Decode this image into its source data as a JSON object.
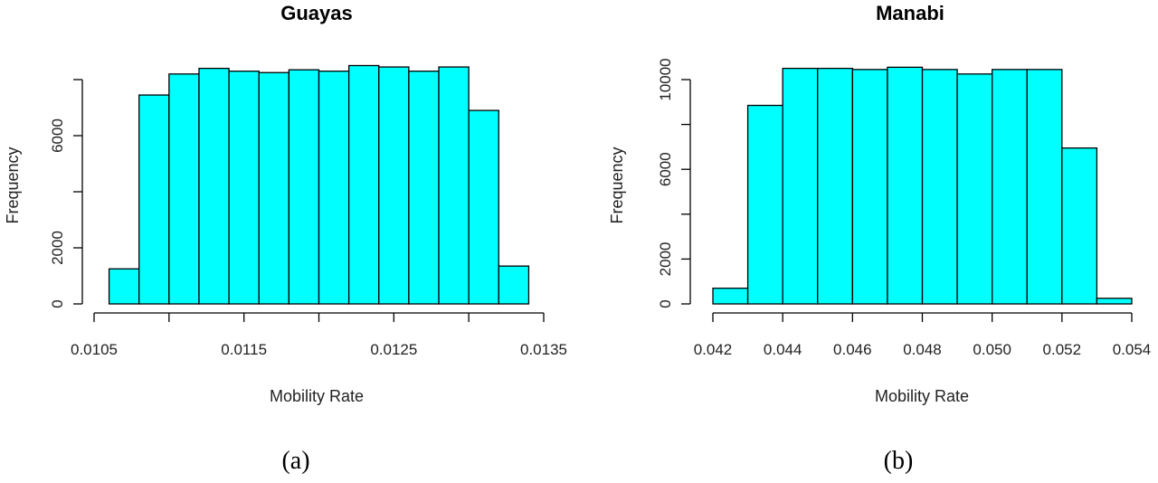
{
  "chart_data": [
    {
      "type": "bar",
      "subtype": "histogram",
      "title": "Guayas",
      "xlabel": "Mobility Rate",
      "ylabel": "Frequency",
      "bar_color": "#00FFFF",
      "edge_color": "#000000",
      "xlim": [
        0.0105,
        0.0135
      ],
      "ylim": [
        0,
        8000
      ],
      "x_ticks": [
        0.0105,
        0.011,
        0.0115,
        0.012,
        0.0125,
        0.013,
        0.0135
      ],
      "x_tick_labels": [
        {
          "value": 0.0105,
          "label": "0.0105"
        },
        {
          "value": 0.0115,
          "label": "0.0115"
        },
        {
          "value": 0.0125,
          "label": "0.0125"
        },
        {
          "value": 0.0135,
          "label": "0.0135"
        }
      ],
      "y_ticks": [
        0,
        2000,
        4000,
        6000,
        8000
      ],
      "y_tick_labels": [
        {
          "value": 0,
          "label": "0"
        },
        {
          "value": 2000,
          "label": "2000"
        },
        {
          "value": 6000,
          "label": "6000"
        }
      ],
      "bins": [
        [
          0.0106,
          0.0108
        ],
        [
          0.0108,
          0.011
        ],
        [
          0.011,
          0.0112
        ],
        [
          0.0112,
          0.0114
        ],
        [
          0.0114,
          0.0116
        ],
        [
          0.0116,
          0.0118
        ],
        [
          0.0118,
          0.012
        ],
        [
          0.012,
          0.0122
        ],
        [
          0.0122,
          0.0124
        ],
        [
          0.0124,
          0.0126
        ],
        [
          0.0126,
          0.0128
        ],
        [
          0.0128,
          0.013
        ],
        [
          0.013,
          0.0132
        ],
        [
          0.0132,
          0.0134
        ]
      ],
      "values": [
        1250,
        7450,
        8200,
        8400,
        8300,
        8250,
        8350,
        8300,
        8500,
        8450,
        8300,
        8450,
        6900,
        1350
      ],
      "caption": "(a)"
    },
    {
      "type": "bar",
      "subtype": "histogram",
      "title": "Manabi",
      "xlabel": "Mobility Rate",
      "ylabel": "Frequency",
      "bar_color": "#00FFFF",
      "edge_color": "#000000",
      "xlim": [
        0.042,
        0.054
      ],
      "ylim": [
        0,
        10000
      ],
      "x_ticks": [
        0.042,
        0.044,
        0.046,
        0.048,
        0.05,
        0.052,
        0.054
      ],
      "x_tick_labels": [
        {
          "value": 0.042,
          "label": "0.042"
        },
        {
          "value": 0.044,
          "label": "0.044"
        },
        {
          "value": 0.046,
          "label": "0.046"
        },
        {
          "value": 0.048,
          "label": "0.048"
        },
        {
          "value": 0.05,
          "label": "0.050"
        },
        {
          "value": 0.052,
          "label": "0.052"
        },
        {
          "value": 0.054,
          "label": "0.054"
        }
      ],
      "y_ticks": [
        0,
        2000,
        4000,
        6000,
        8000,
        10000
      ],
      "y_tick_labels": [
        {
          "value": 0,
          "label": "0"
        },
        {
          "value": 2000,
          "label": "2000"
        },
        {
          "value": 6000,
          "label": "6000"
        },
        {
          "value": 10000,
          "label": "10000"
        }
      ],
      "bins": [
        [
          0.042,
          0.043
        ],
        [
          0.043,
          0.044
        ],
        [
          0.044,
          0.045
        ],
        [
          0.045,
          0.046
        ],
        [
          0.046,
          0.047
        ],
        [
          0.047,
          0.048
        ],
        [
          0.048,
          0.049
        ],
        [
          0.049,
          0.05
        ],
        [
          0.05,
          0.051
        ],
        [
          0.051,
          0.052
        ],
        [
          0.052,
          0.053
        ],
        [
          0.053,
          0.054
        ]
      ],
      "values": [
        700,
        8850,
        10500,
        10500,
        10450,
        10550,
        10450,
        10250,
        10450,
        10450,
        6950,
        250
      ],
      "caption": "(b)"
    }
  ]
}
